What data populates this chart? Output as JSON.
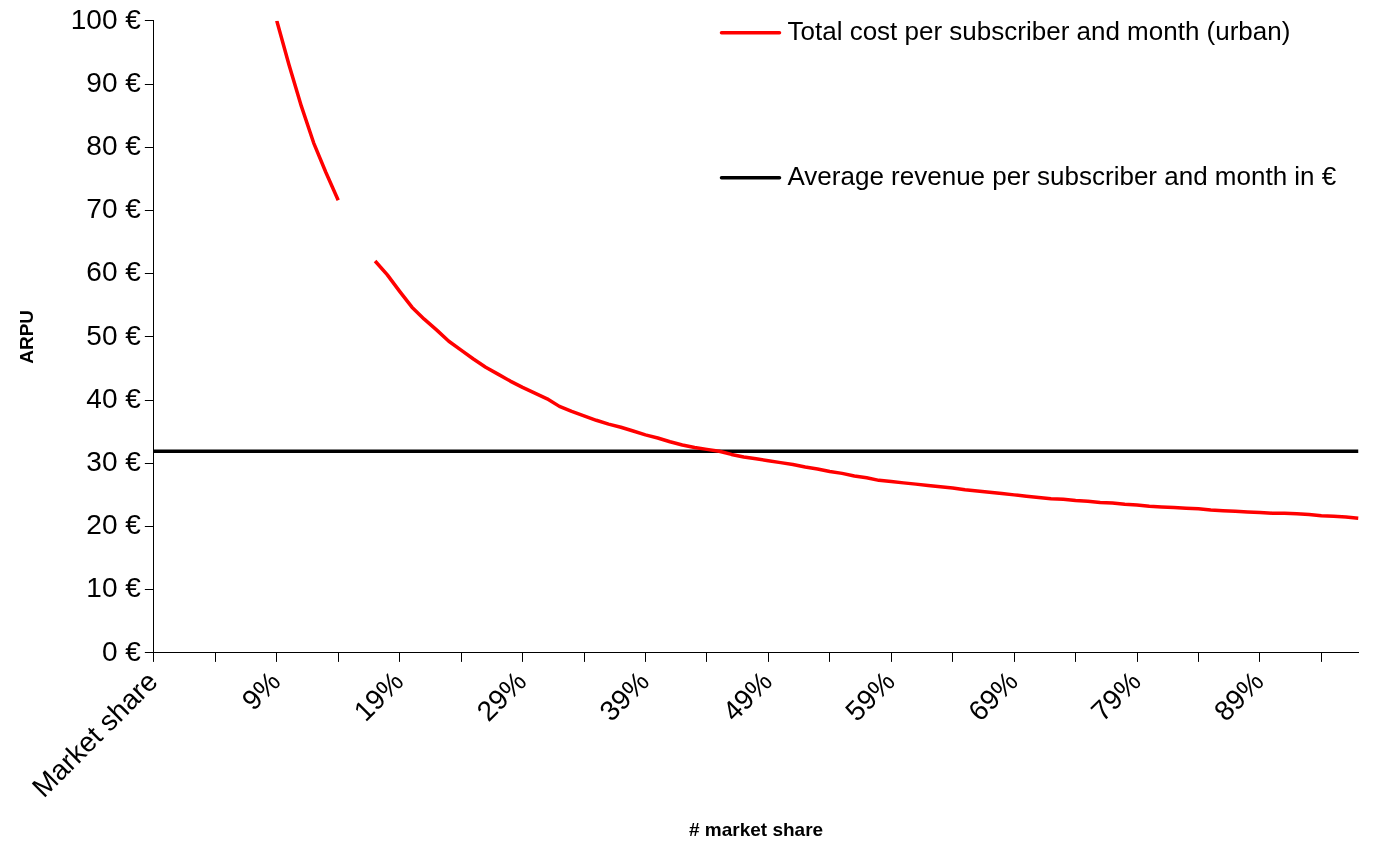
{
  "chart_data": {
    "type": "line",
    "xlabel": "# market share",
    "ylabel": "ARPU",
    "categories": [
      "Market share",
      null,
      null,
      null,
      null,
      null,
      null,
      null,
      null,
      null,
      "9%",
      null,
      null,
      null,
      null,
      null,
      null,
      null,
      null,
      null,
      "19%",
      null,
      null,
      null,
      null,
      null,
      null,
      null,
      null,
      null,
      "29%",
      null,
      null,
      null,
      null,
      null,
      null,
      null,
      null,
      null,
      "39%",
      null,
      null,
      null,
      null,
      null,
      null,
      null,
      null,
      null,
      "49%",
      null,
      null,
      null,
      null,
      null,
      null,
      null,
      null,
      null,
      "59%",
      null,
      null,
      null,
      null,
      null,
      null,
      null,
      null,
      null,
      "69%",
      null,
      null,
      null,
      null,
      null,
      null,
      null,
      null,
      null,
      "79%",
      null,
      null,
      null,
      null,
      null,
      null,
      null,
      null,
      null,
      "89%",
      null,
      null,
      null,
      null,
      null,
      null,
      null,
      null
    ],
    "series": [
      {
        "name": "Total cost per subscriber and month (urban)",
        "color": "#ff0000",
        "values": [
          null,
          null,
          null,
          null,
          null,
          null,
          null,
          null,
          null,
          null,
          100,
          93,
          86.5,
          80.7,
          76,
          71.6,
          null,
          null,
          62,
          59.8,
          57.2,
          54.7,
          52.8,
          51.1,
          49.3,
          47.9,
          46.5,
          45.2,
          44.1,
          43,
          42,
          41.1,
          40.2,
          39,
          38.2,
          37.5,
          36.8,
          36.2,
          35.7,
          35.1,
          34.5,
          34,
          33.4,
          32.9,
          32.5,
          32.2,
          31.9,
          31.4,
          31,
          30.7,
          30.4,
          30.1,
          29.8,
          29.4,
          29.1,
          28.7,
          28.4,
          28,
          27.7,
          27.3,
          27.1,
          26.9,
          26.7,
          26.5,
          26.3,
          26.1,
          25.8,
          25.6,
          25.4,
          25.2,
          25,
          24.8,
          24.6,
          24.4,
          24.3,
          24.1,
          24,
          23.8,
          23.7,
          23.5,
          23.4,
          23.2,
          23.1,
          23,
          22.9,
          22.8,
          22.6,
          22.5,
          22.4,
          22.3,
          22.2,
          22.1,
          22.1,
          22,
          21.9,
          21.7,
          21.6,
          21.5,
          21.3
        ]
      },
      {
        "name": "Average revenue per subscriber and month in €",
        "color": "#000000",
        "values": [
          31.9,
          31.9,
          31.9,
          31.9,
          31.9,
          31.9,
          31.9,
          31.9,
          31.9,
          31.9,
          31.9,
          31.9,
          31.9,
          31.9,
          31.9,
          31.9,
          31.9,
          31.9,
          31.9,
          31.9,
          31.9,
          31.9,
          31.9,
          31.9,
          31.9,
          31.9,
          31.9,
          31.9,
          31.9,
          31.9,
          31.9,
          31.9,
          31.9,
          31.9,
          31.9,
          31.9,
          31.9,
          31.9,
          31.9,
          31.9,
          31.9,
          31.9,
          31.9,
          31.9,
          31.9,
          31.9,
          31.9,
          31.9,
          31.9,
          31.9,
          31.9,
          31.9,
          31.9,
          31.9,
          31.9,
          31.9,
          31.9,
          31.9,
          31.9,
          31.9,
          31.9,
          31.9,
          31.9,
          31.9,
          31.9,
          31.9,
          31.9,
          31.9,
          31.9,
          31.9,
          31.9,
          31.9,
          31.9,
          31.9,
          31.9,
          31.9,
          31.9,
          31.9,
          31.9,
          31.9,
          31.9,
          31.9,
          31.9,
          31.9,
          31.9,
          31.9,
          31.9,
          31.9,
          31.9,
          31.9,
          31.9,
          31.9,
          31.9,
          31.9,
          31.9,
          31.9,
          31.9,
          31.9,
          31.9
        ]
      }
    ],
    "ylim": [
      0,
      100
    ],
    "yticks": [
      {
        "value": 0,
        "label": "0 €"
      },
      {
        "value": 10,
        "label": "10 €"
      },
      {
        "value": 20,
        "label": "20 €"
      },
      {
        "value": 30,
        "label": "30 €"
      },
      {
        "value": 40,
        "label": "40 €"
      },
      {
        "value": 50,
        "label": "50 €"
      },
      {
        "value": 60,
        "label": "60 €"
      },
      {
        "value": 70,
        "label": "70 €"
      },
      {
        "value": 80,
        "label": "80 €"
      },
      {
        "value": 90,
        "label": "90 €"
      },
      {
        "value": 100,
        "label": "100 €"
      }
    ],
    "legend": "top right",
    "marker": "none",
    "line_style": "solid"
  }
}
